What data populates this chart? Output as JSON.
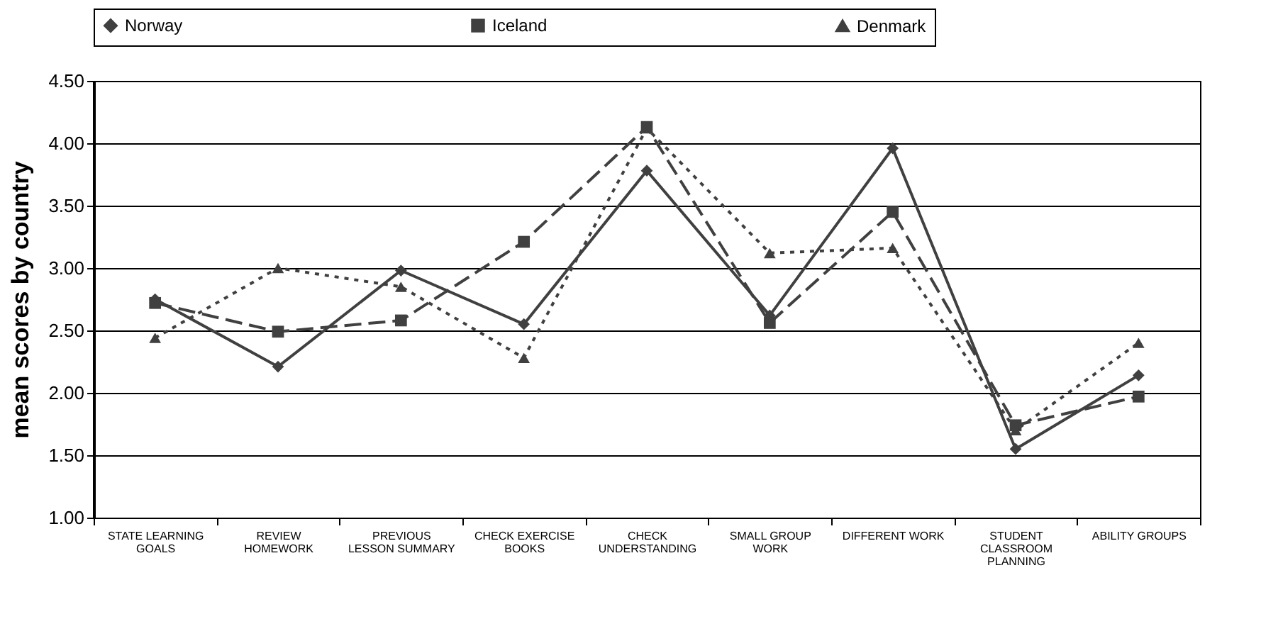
{
  "chart_data": {
    "type": "line",
    "ylabel": "mean scores by country",
    "categories": [
      "STATE  LEARNING GOALS",
      "REVIEW HOMEWORK",
      "PREVIOUS LESSON SUMMARY",
      "CHECK EXERCISE BOOKS",
      "CHECK UNDERSTANDING",
      "SMALL GROUP WORK",
      "DIFFERENT WORK",
      "STUDENT CLASSROOM PLANNING",
      "ABILITY GROUPS"
    ],
    "series": [
      {
        "name": "Norway",
        "color": "#404040",
        "line_style": "solid",
        "marker": "diamond",
        "values": [
          2.75,
          2.21,
          2.98,
          2.55,
          3.78,
          2.62,
          3.96,
          1.55,
          2.14
        ]
      },
      {
        "name": "Iceland",
        "color": "#404040",
        "line_style": "dashed",
        "marker": "square",
        "values": [
          2.72,
          2.49,
          2.58,
          3.21,
          4.13,
          2.56,
          3.45,
          1.74,
          1.97
        ]
      },
      {
        "name": "Denmark",
        "color": "#404040",
        "line_style": "dotted",
        "marker": "triangle",
        "values": [
          2.44,
          3.0,
          2.85,
          2.28,
          4.12,
          3.12,
          3.16,
          1.7,
          2.4
        ]
      }
    ],
    "ylim": [
      1,
      4.5
    ],
    "yticks": [
      {
        "value": 1,
        "label": "1.00"
      },
      {
        "value": 1.5,
        "label": "1.50"
      },
      {
        "value": 2,
        "label": "2.00"
      },
      {
        "value": 2.5,
        "label": "2.50"
      },
      {
        "value": 3,
        "label": "3.00"
      },
      {
        "value": 3.5,
        "label": "3.50"
      },
      {
        "value": 4,
        "label": "4.00"
      },
      {
        "value": 4.5,
        "label": "4.50"
      }
    ],
    "grid": "y",
    "legend": "top"
  }
}
